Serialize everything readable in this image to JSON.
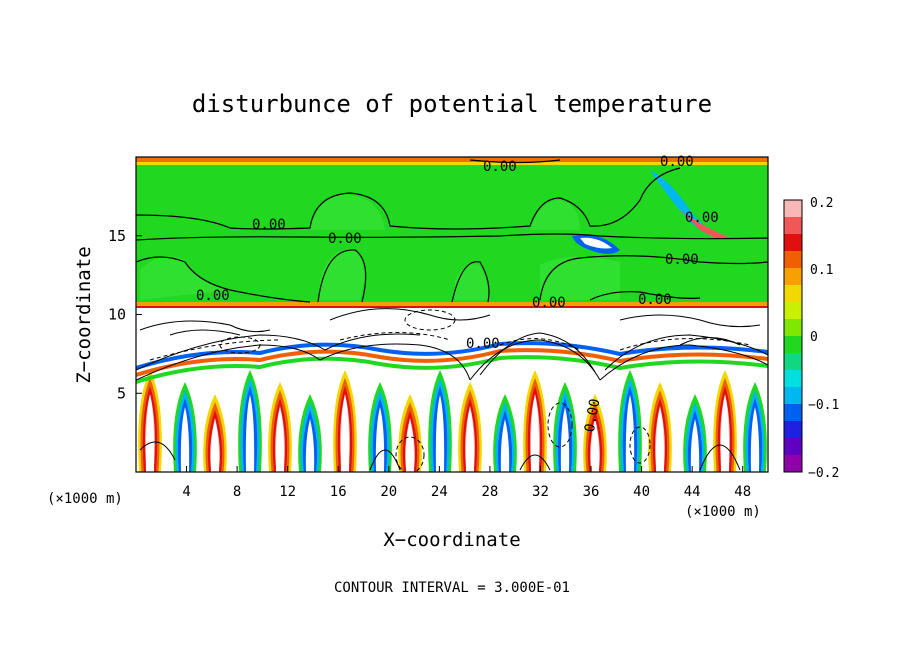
{
  "chart_data": {
    "type": "heatmap",
    "title": "disturbunce of potential temperature",
    "xlabel": "X−coordinate",
    "ylabel": "Z−coordinate",
    "x_unit": "(×1000 m)",
    "y_unit": "(×1000 m)",
    "xlim": [
      0,
      50
    ],
    "ylim": [
      0,
      20
    ],
    "x_ticks": [
      "4",
      "8",
      "12",
      "16",
      "20",
      "24",
      "28",
      "32",
      "36",
      "40",
      "44",
      "48"
    ],
    "y_ticks": [
      "5",
      "10",
      "15"
    ],
    "colorbar": {
      "range": [
        -0.2,
        0.2
      ],
      "tick_labels": [
        "0.2",
        "0.1",
        "0",
        "−0.1",
        "−0.2"
      ],
      "colors": [
        "#f8b8b8",
        "#f05858",
        "#e01010",
        "#f06000",
        "#f8a000",
        "#f0d800",
        "#c8f000",
        "#80e800",
        "#20d820",
        "#10d880",
        "#00e0e0",
        "#00b8f0",
        "#0060f0",
        "#2020e0",
        "#6000c0",
        "#9000a8"
      ]
    },
    "contour_labels": [
      "0.00",
      "0.00",
      "0.00",
      "0.00",
      "0.00",
      "0.00",
      "0.00",
      "0.00",
      "0.00",
      "0.00",
      "0.00"
    ],
    "footer": "CONTOUR INTERVAL = 3.000E-01",
    "colors": {
      "background": "#ffffff",
      "zero_band": "#20d820",
      "frame": "#000000"
    }
  }
}
